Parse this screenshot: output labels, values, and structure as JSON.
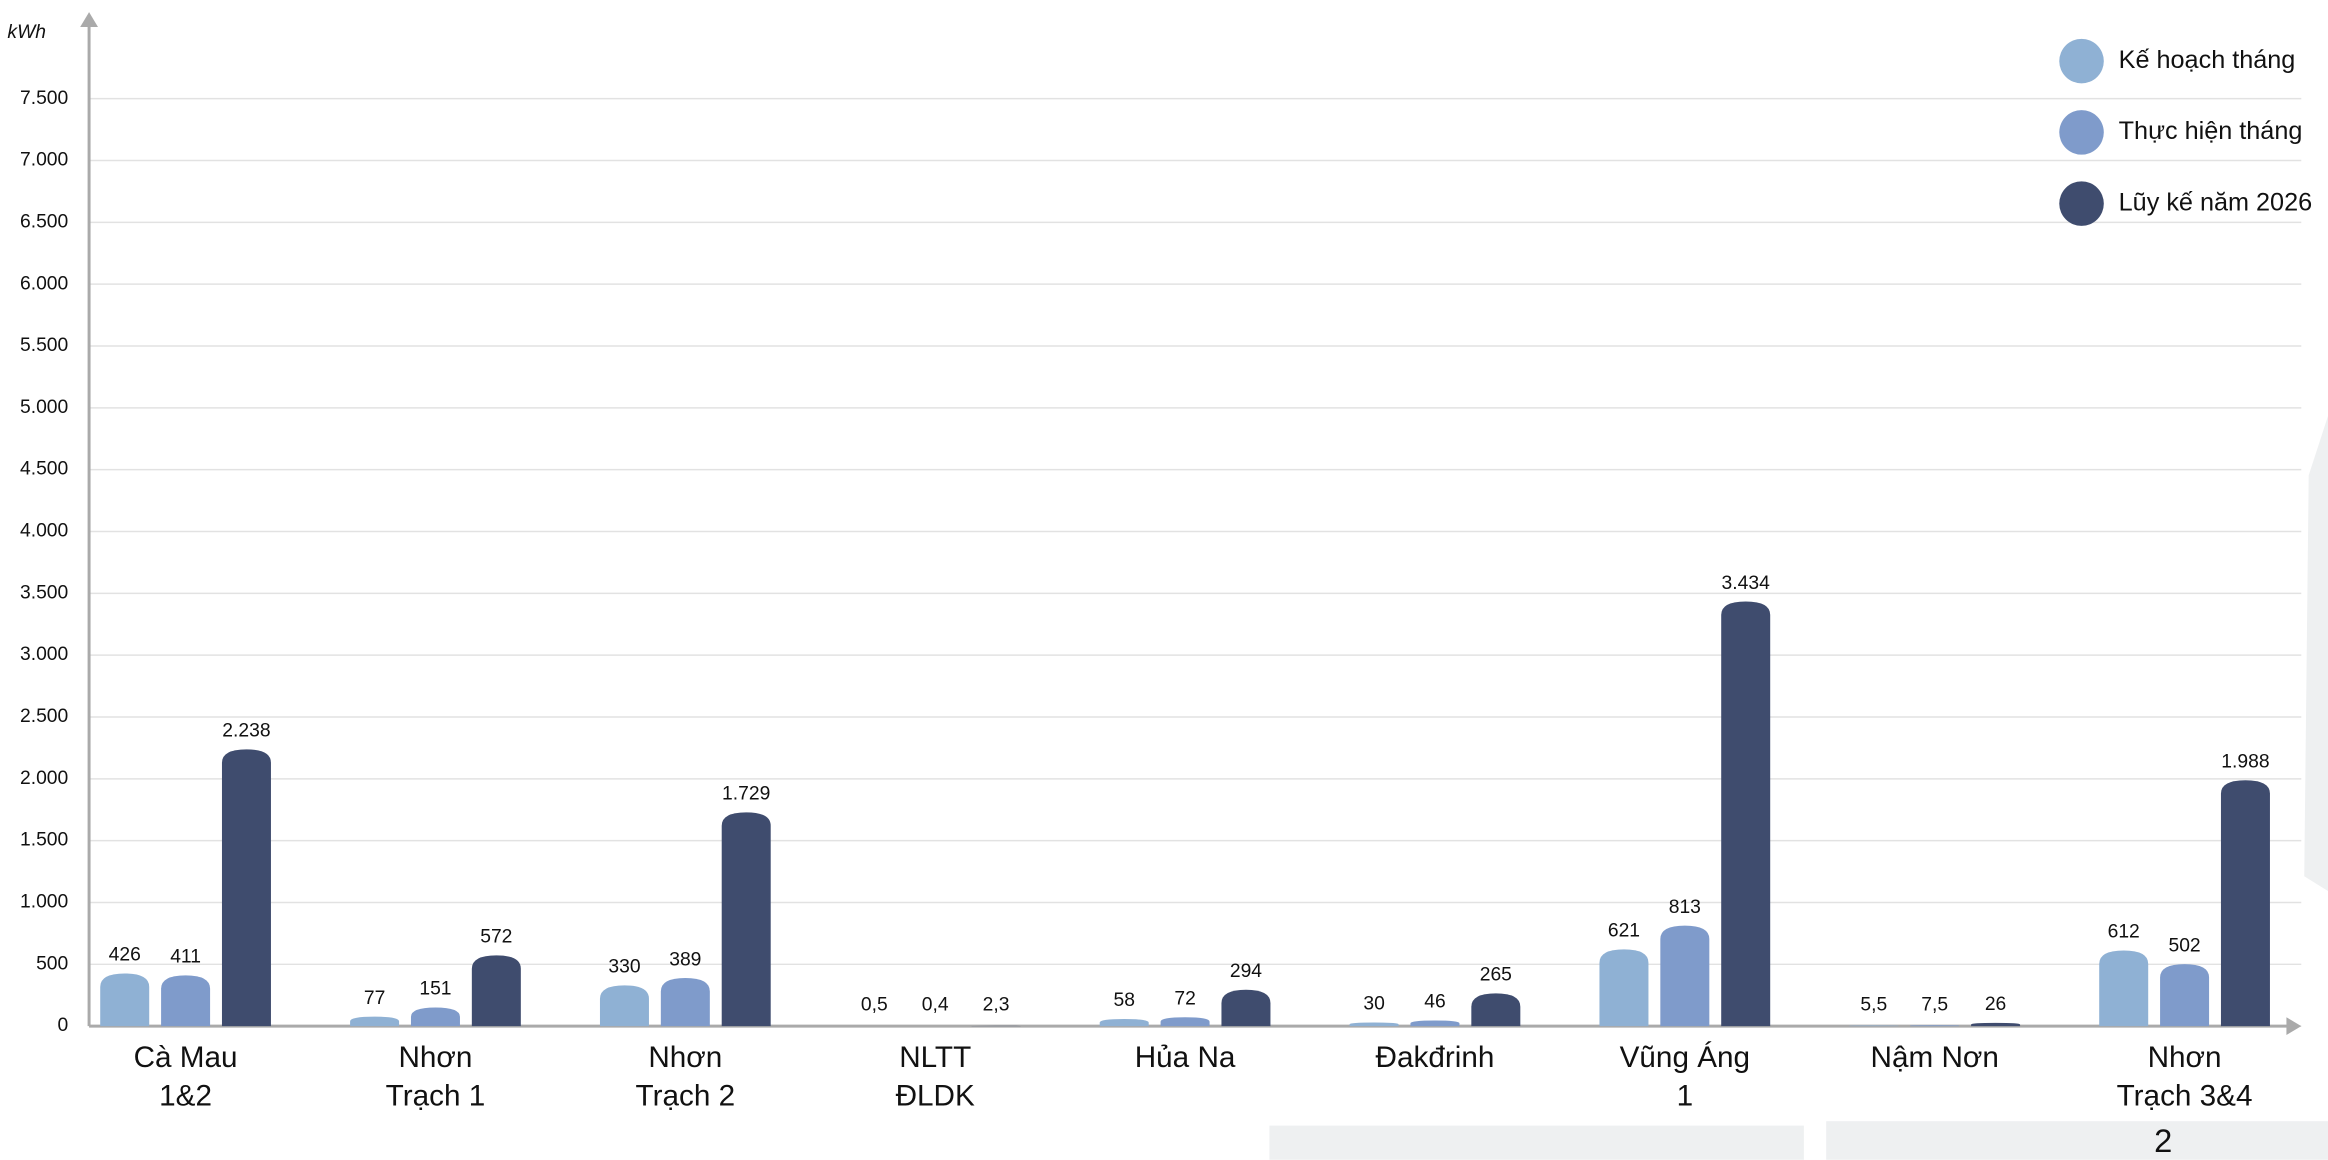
{
  "chart_data": {
    "type": "bar",
    "y_label": "kWh",
    "categories": [
      "Cà Mau\n1&2",
      "Nhơn\nTrạch 1",
      "Nhơn\nTrạch 2",
      "NLTT\nĐLDK",
      "Hủa Na",
      "Đakđrinh",
      "Vũng Áng\n1",
      "Nậm Nơn",
      "Nhơn\nTrạch 3&4"
    ],
    "series": [
      {
        "name": "Kế hoạch tháng",
        "color": "#8fb1d4",
        "values": [
          426,
          77,
          330,
          0.5,
          58,
          30,
          621,
          5.5,
          612
        ],
        "value_labels": [
          "426",
          "77",
          "330",
          "0,5",
          "58",
          "30",
          "621",
          "5,5",
          "612"
        ]
      },
      {
        "name": "Thực hiện tháng",
        "color": "#7f9bcb",
        "values": [
          411,
          151,
          389,
          0.4,
          72,
          46,
          813,
          7.5,
          502
        ],
        "value_labels": [
          "411",
          "151",
          "389",
          "0,4",
          "72",
          "46",
          "813",
          "7,5",
          "502"
        ]
      },
      {
        "name": "Lũy kế năm 2026",
        "color": "#3f4c6e",
        "values": [
          2238,
          572,
          1729,
          2.3,
          294,
          265,
          3434,
          26,
          1988
        ],
        "value_labels": [
          "2.238",
          "572",
          "1.729",
          "2,3",
          "294",
          "265",
          "3.434",
          "26",
          "1.988"
        ]
      }
    ],
    "ylim": [
      0,
      8200
    ],
    "yticks": [
      0,
      {
        "value": 500,
        "label": "500"
      },
      {
        "value": 1000,
        "label": "1.000"
      },
      {
        "value": 1500,
        "label": "1.500"
      },
      {
        "value": 2000,
        "label": "2.000"
      },
      {
        "value": 2500,
        "label": "2.500"
      },
      {
        "value": 3000,
        "label": "3.000"
      },
      {
        "value": 3500,
        "label": "3.500"
      },
      {
        "value": 4000,
        "label": "4.000"
      },
      {
        "value": 4500,
        "label": "4.500"
      },
      {
        "value": 5000,
        "label": "5.000"
      },
      {
        "value": 5500,
        "label": "5.500"
      },
      {
        "value": 6000,
        "label": "6.000"
      },
      {
        "value": 6500,
        "label": "6.500"
      },
      {
        "value": 7000,
        "label": "7.000"
      },
      {
        "value": 7500,
        "label": "7.500"
      }
    ],
    "grid": true,
    "legend": "top-right"
  },
  "page_number": "2"
}
